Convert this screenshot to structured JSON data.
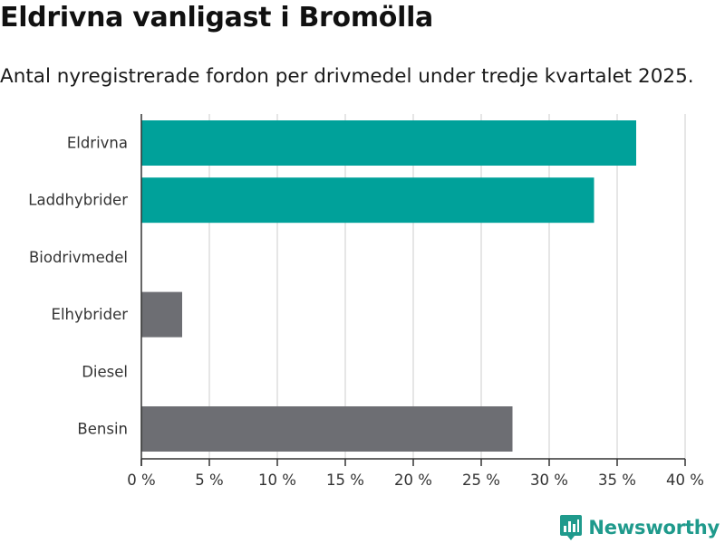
{
  "title": "Eldrivna vanligast i Bromölla",
  "subtitle": "Antal nyregistrerade fordon per drivmedel under tredje kvartalet 2025.",
  "brand": {
    "name": "Newsworthy",
    "icon": "bar-chart-pin-icon",
    "color": "#1f9a8c"
  },
  "chart_data": {
    "type": "bar",
    "orientation": "horizontal",
    "categories": [
      "Eldrivna",
      "Laddhybrider",
      "Biodrivmedel",
      "Elhybrider",
      "Diesel",
      "Bensin"
    ],
    "values": [
      36.4,
      33.3,
      0,
      3.0,
      0,
      27.3
    ],
    "colors": [
      "#00a19a",
      "#00a19a",
      "#6d6e73",
      "#6d6e73",
      "#6d6e73",
      "#6d6e73"
    ],
    "xlim": [
      0,
      40
    ],
    "xticks": [
      0,
      5,
      10,
      15,
      20,
      25,
      30,
      35,
      40
    ],
    "tick_labels": [
      "0 %",
      "5 %",
      "10 %",
      "15 %",
      "20 %",
      "25 %",
      "30 %",
      "35 %",
      "40 %"
    ],
    "grid": true,
    "legend": "none"
  }
}
